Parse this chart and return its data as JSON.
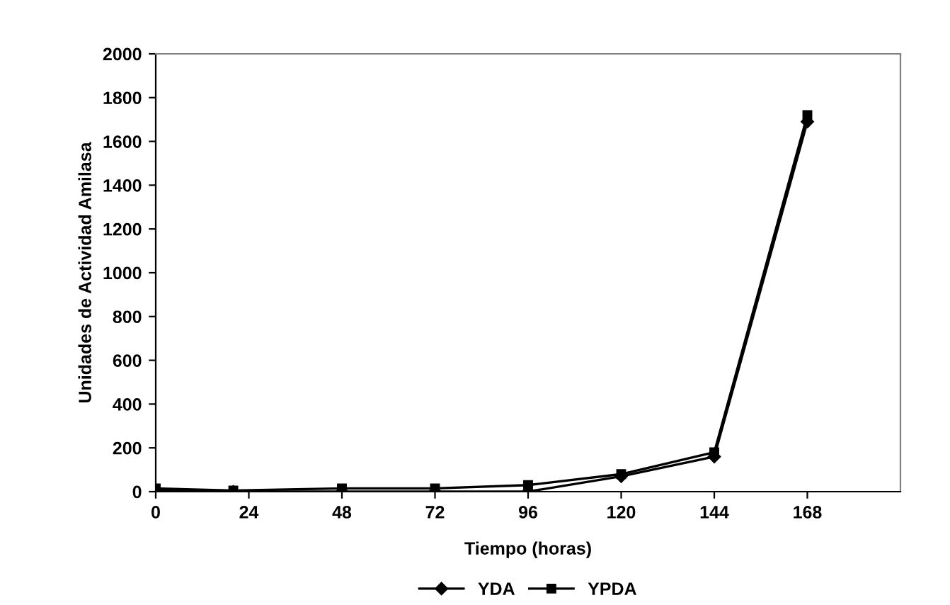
{
  "chart_data": {
    "type": "line",
    "xlabel": "Tiempo (horas)",
    "ylabel": "Unidades de Actividad Amilasa",
    "x": [
      0,
      20,
      48,
      72,
      96,
      120,
      144,
      168
    ],
    "series": [
      {
        "name": "YDA",
        "color": "#000000",
        "marker": "diamond",
        "values": [
          5,
          0,
          0,
          0,
          0,
          70,
          160,
          1690
        ]
      },
      {
        "name": "YPDA",
        "color": "#000000",
        "marker": "square",
        "values": [
          15,
          5,
          15,
          15,
          30,
          80,
          180,
          1720
        ]
      }
    ],
    "xlim": [
      0,
      192
    ],
    "xticks": [
      0,
      24,
      48,
      72,
      96,
      120,
      144,
      168
    ],
    "ylim": [
      0,
      2000
    ],
    "yticks": [
      0,
      200,
      400,
      600,
      800,
      1000,
      1200,
      1400,
      1600,
      1800,
      2000
    ],
    "grid": false,
    "legend": "bottom",
    "line_style": "solid"
  }
}
